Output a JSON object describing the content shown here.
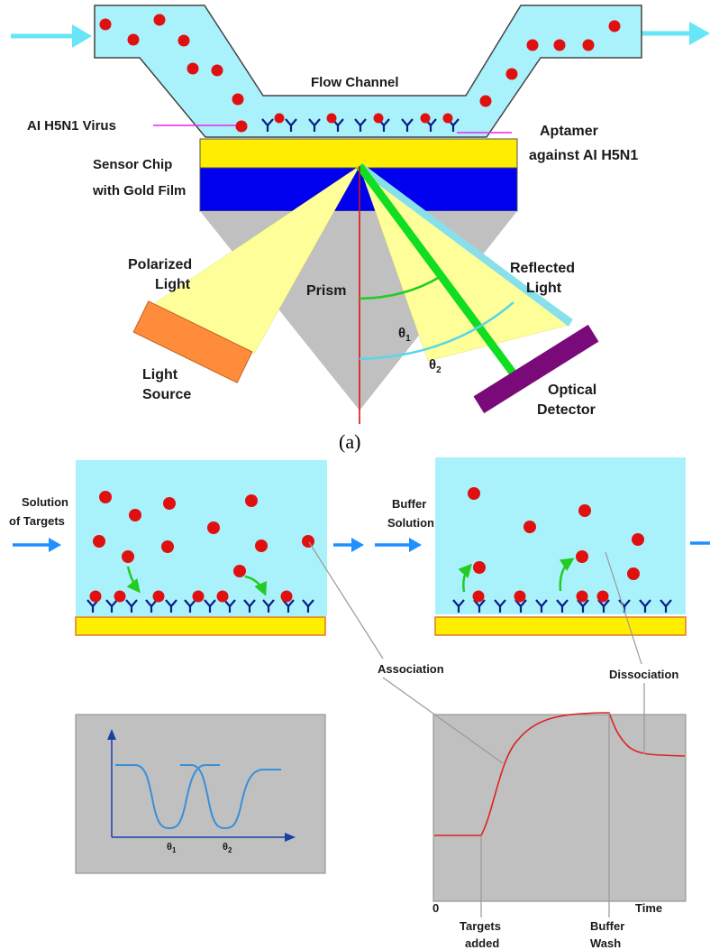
{
  "top": {
    "flow_channel": "Flow  Channel",
    "virus": "AI H5N1 Virus",
    "aptamer_line1": "Aptamer",
    "aptamer_line2": "against AI H5N1",
    "chip_line1": "Sensor Chip",
    "chip_line2": "with Gold Film",
    "polarized_line1": "Polarized",
    "polarized_line2": "Light",
    "prism": "Prism",
    "reflected_line1": "Reflected",
    "reflected_line2": "Light",
    "theta1": "θ",
    "theta1_sub": "1",
    "theta2": "θ",
    "theta2_sub": "2",
    "source_line1": "Light",
    "source_line2": "Source",
    "detector_line1": "Optical",
    "detector_line2": "Detector"
  },
  "caption": "(a)",
  "bottom": {
    "solution_line1": "Solution",
    "solution_line2": "of Targets",
    "buffer_line1": "Buffer",
    "buffer_line2": "Solution",
    "association": "Association",
    "dissociation": "Dissociation",
    "dip_theta1": "θ",
    "dip_theta1_sub": "1",
    "dip_theta2": "θ",
    "dip_theta2_sub": "2",
    "axis_zero": "0",
    "axis_time": "Time",
    "targets_line1": "Targets",
    "targets_line2": "added",
    "buffer_wash_line1": "Buffer",
    "buffer_wash_line2": "Wash"
  },
  "colors": {
    "channel": "#aaf2fb",
    "virus": "#e01010",
    "gold": "#ffee00",
    "blue_film": "#0000ee",
    "prism": "#c0c0c0",
    "beam": "#ffff99",
    "source": "#ff8c3a",
    "detector": "#7a0a7a",
    "arrow": "#1e90ff"
  }
}
